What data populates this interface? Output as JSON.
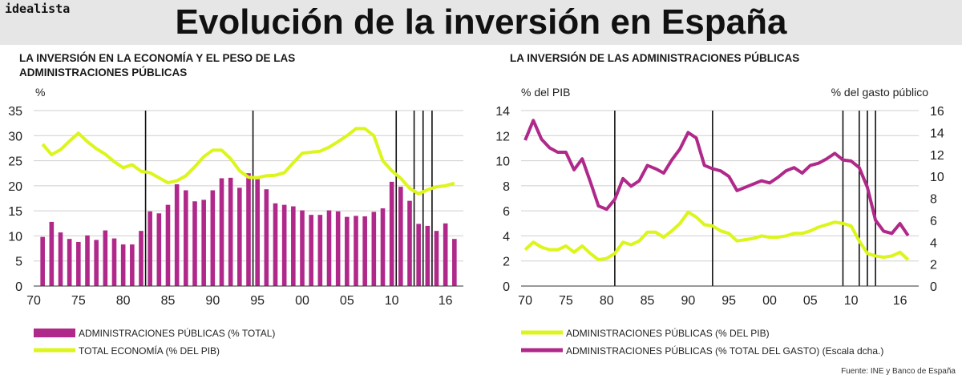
{
  "header": {
    "brand": "idealista",
    "title": "Evolución de la inversión en España"
  },
  "source": "Fuente: INE y Banco de España",
  "colors": {
    "magenta": "#b0298a",
    "lime": "#dcf51a",
    "background": "#ffffff",
    "header_bg": "#e6e6e6"
  },
  "chart_data": [
    {
      "type": "bar",
      "title_lines": [
        "LA INVERSIÓN EN LA ECONOMÍA Y EL PESO DE LAS",
        "ADMINISTRACIONES PÚBLICAS"
      ],
      "ylabel": "%",
      "ylim": [
        0,
        35
      ],
      "yticks": [
        "0",
        "5",
        "10",
        "15",
        "20",
        "25",
        "30",
        "35"
      ],
      "xticks": [
        {
          "label": "70",
          "year": 1970
        },
        {
          "label": "75",
          "year": 1975
        },
        {
          "label": "80",
          "year": 1980
        },
        {
          "label": "85",
          "year": 1985
        },
        {
          "label": "90",
          "year": 1990
        },
        {
          "label": "95",
          "year": 1995
        },
        {
          "label": "00",
          "year": 2000
        },
        {
          "label": "05",
          "year": 2005
        },
        {
          "label": "10",
          "year": 2010
        },
        {
          "label": "16",
          "year": 2016
        }
      ],
      "vlines": [
        1982,
        1994,
        2010,
        2012,
        2013,
        2014
      ],
      "years": [
        1971,
        1972,
        1973,
        1974,
        1975,
        1976,
        1977,
        1978,
        1979,
        1980,
        1981,
        1982,
        1983,
        1984,
        1985,
        1986,
        1987,
        1988,
        1989,
        1990,
        1991,
        1992,
        1993,
        1994,
        1995,
        1996,
        1997,
        1998,
        1999,
        2000,
        2001,
        2002,
        2003,
        2004,
        2005,
        2006,
        2007,
        2008,
        2009,
        2010,
        2011,
        2012,
        2013,
        2014,
        2015,
        2016,
        2017
      ],
      "series": [
        {
          "name": "ADMINISTRACIONES PÚBLICAS (% TOTAL)",
          "kind": "bar",
          "color": "#b0298a",
          "values": [
            9.8,
            12.8,
            10.7,
            9.4,
            8.8,
            10.1,
            9.2,
            11.1,
            9.5,
            8.3,
            8.3,
            11.0,
            14.9,
            14.5,
            16.2,
            20.3,
            19.1,
            16.9,
            17.2,
            19.1,
            21.5,
            21.6,
            19.6,
            22.5,
            21.3,
            19.3,
            16.5,
            16.2,
            15.9,
            15.1,
            14.2,
            14.2,
            15.1,
            14.9,
            13.8,
            14.0,
            13.9,
            14.8,
            15.5,
            20.8,
            19.8,
            17.0,
            12.4,
            12.0,
            11.0,
            12.5,
            9.4
          ]
        },
        {
          "name": "TOTAL ECONOMÍA (% DEL PIB)",
          "kind": "line",
          "color": "#dcf51a",
          "values": [
            28.3,
            26.2,
            27.2,
            28.9,
            30.5,
            28.8,
            27.4,
            26.3,
            24.8,
            23.6,
            24.2,
            22.9,
            22.6,
            21.6,
            20.6,
            21.0,
            22.0,
            23.8,
            25.8,
            27.1,
            27.1,
            25.4,
            23.0,
            21.7,
            21.6,
            22.0,
            22.1,
            22.6,
            24.6,
            26.5,
            26.7,
            26.9,
            27.7,
            28.8,
            30.0,
            31.4,
            31.4,
            30.0,
            25.0,
            23.0,
            21.5,
            19.5,
            18.4,
            19.2,
            19.8,
            20.0,
            20.5
          ]
        }
      ]
    },
    {
      "type": "line",
      "title_lines": [
        "LA INVERSIÓN DE LAS ADMINISTRACIONES PÚBLICAS"
      ],
      "ylabel_left": "% del PIB",
      "ylabel_right": "% del gasto público",
      "ylim": [
        0,
        14
      ],
      "ylim_right": [
        0,
        16
      ],
      "yticks": [
        "0",
        "2",
        "4",
        "6",
        "8",
        "10",
        "12",
        "14"
      ],
      "yticks_right": [
        "0",
        "2",
        "4",
        "6",
        "8",
        "10",
        "12",
        "14",
        "16"
      ],
      "xticks": [
        {
          "label": "70",
          "year": 1970
        },
        {
          "label": "75",
          "year": 1975
        },
        {
          "label": "80",
          "year": 1980
        },
        {
          "label": "85",
          "year": 1985
        },
        {
          "label": "90",
          "year": 1990
        },
        {
          "label": "95",
          "year": 1995
        },
        {
          "label": "00",
          "year": 2000
        },
        {
          "label": "05",
          "year": 2005
        },
        {
          "label": "10",
          "year": 2010
        },
        {
          "label": "16",
          "year": 2016
        }
      ],
      "vlines": [
        1981,
        1993,
        2009,
        2011,
        2012,
        2013
      ],
      "years": [
        1970,
        1971,
        1972,
        1973,
        1974,
        1975,
        1976,
        1977,
        1978,
        1979,
        1980,
        1981,
        1982,
        1983,
        1984,
        1985,
        1986,
        1987,
        1988,
        1989,
        1990,
        1991,
        1992,
        1993,
        1994,
        1995,
        1996,
        1997,
        1998,
        1999,
        2000,
        2001,
        2002,
        2003,
        2004,
        2005,
        2006,
        2007,
        2008,
        2009,
        2010,
        2011,
        2012,
        2013,
        2014,
        2015,
        2016,
        2017
      ],
      "series": [
        {
          "name": "ADMINISTRACIONES PÚBLICAS (% DEL PIB)",
          "axis": "left",
          "color": "#dcf51a",
          "values": [
            2.9,
            3.5,
            3.1,
            2.9,
            2.9,
            3.2,
            2.7,
            3.2,
            2.6,
            2.1,
            2.2,
            2.6,
            3.5,
            3.3,
            3.6,
            4.3,
            4.3,
            3.9,
            4.4,
            5.0,
            5.9,
            5.5,
            4.9,
            4.8,
            4.4,
            4.2,
            3.6,
            3.7,
            3.8,
            4.0,
            3.9,
            3.9,
            4.0,
            4.2,
            4.2,
            4.4,
            4.7,
            4.9,
            5.1,
            5.0,
            4.8,
            3.6,
            2.6,
            2.4,
            2.3,
            2.4,
            2.7,
            2.1
          ]
        },
        {
          "name": "ADMINISTRACIONES PÚBLICAS (% TOTAL DEL GASTO) (Escala dcha.)",
          "axis": "right",
          "color": "#b0298a",
          "values": [
            13.3,
            15.1,
            13.4,
            12.6,
            12.2,
            12.2,
            10.6,
            11.6,
            9.5,
            7.3,
            7.0,
            7.9,
            9.8,
            9.1,
            9.6,
            11.0,
            10.7,
            10.3,
            11.5,
            12.5,
            14.0,
            13.5,
            11.0,
            10.7,
            10.5,
            10.0,
            8.7,
            9.0,
            9.3,
            9.6,
            9.4,
            9.9,
            10.5,
            10.8,
            10.3,
            11.0,
            11.2,
            11.6,
            12.1,
            11.5,
            11.4,
            10.8,
            9.0,
            6.0,
            5.0,
            4.8,
            5.7,
            4.6
          ]
        }
      ]
    }
  ]
}
